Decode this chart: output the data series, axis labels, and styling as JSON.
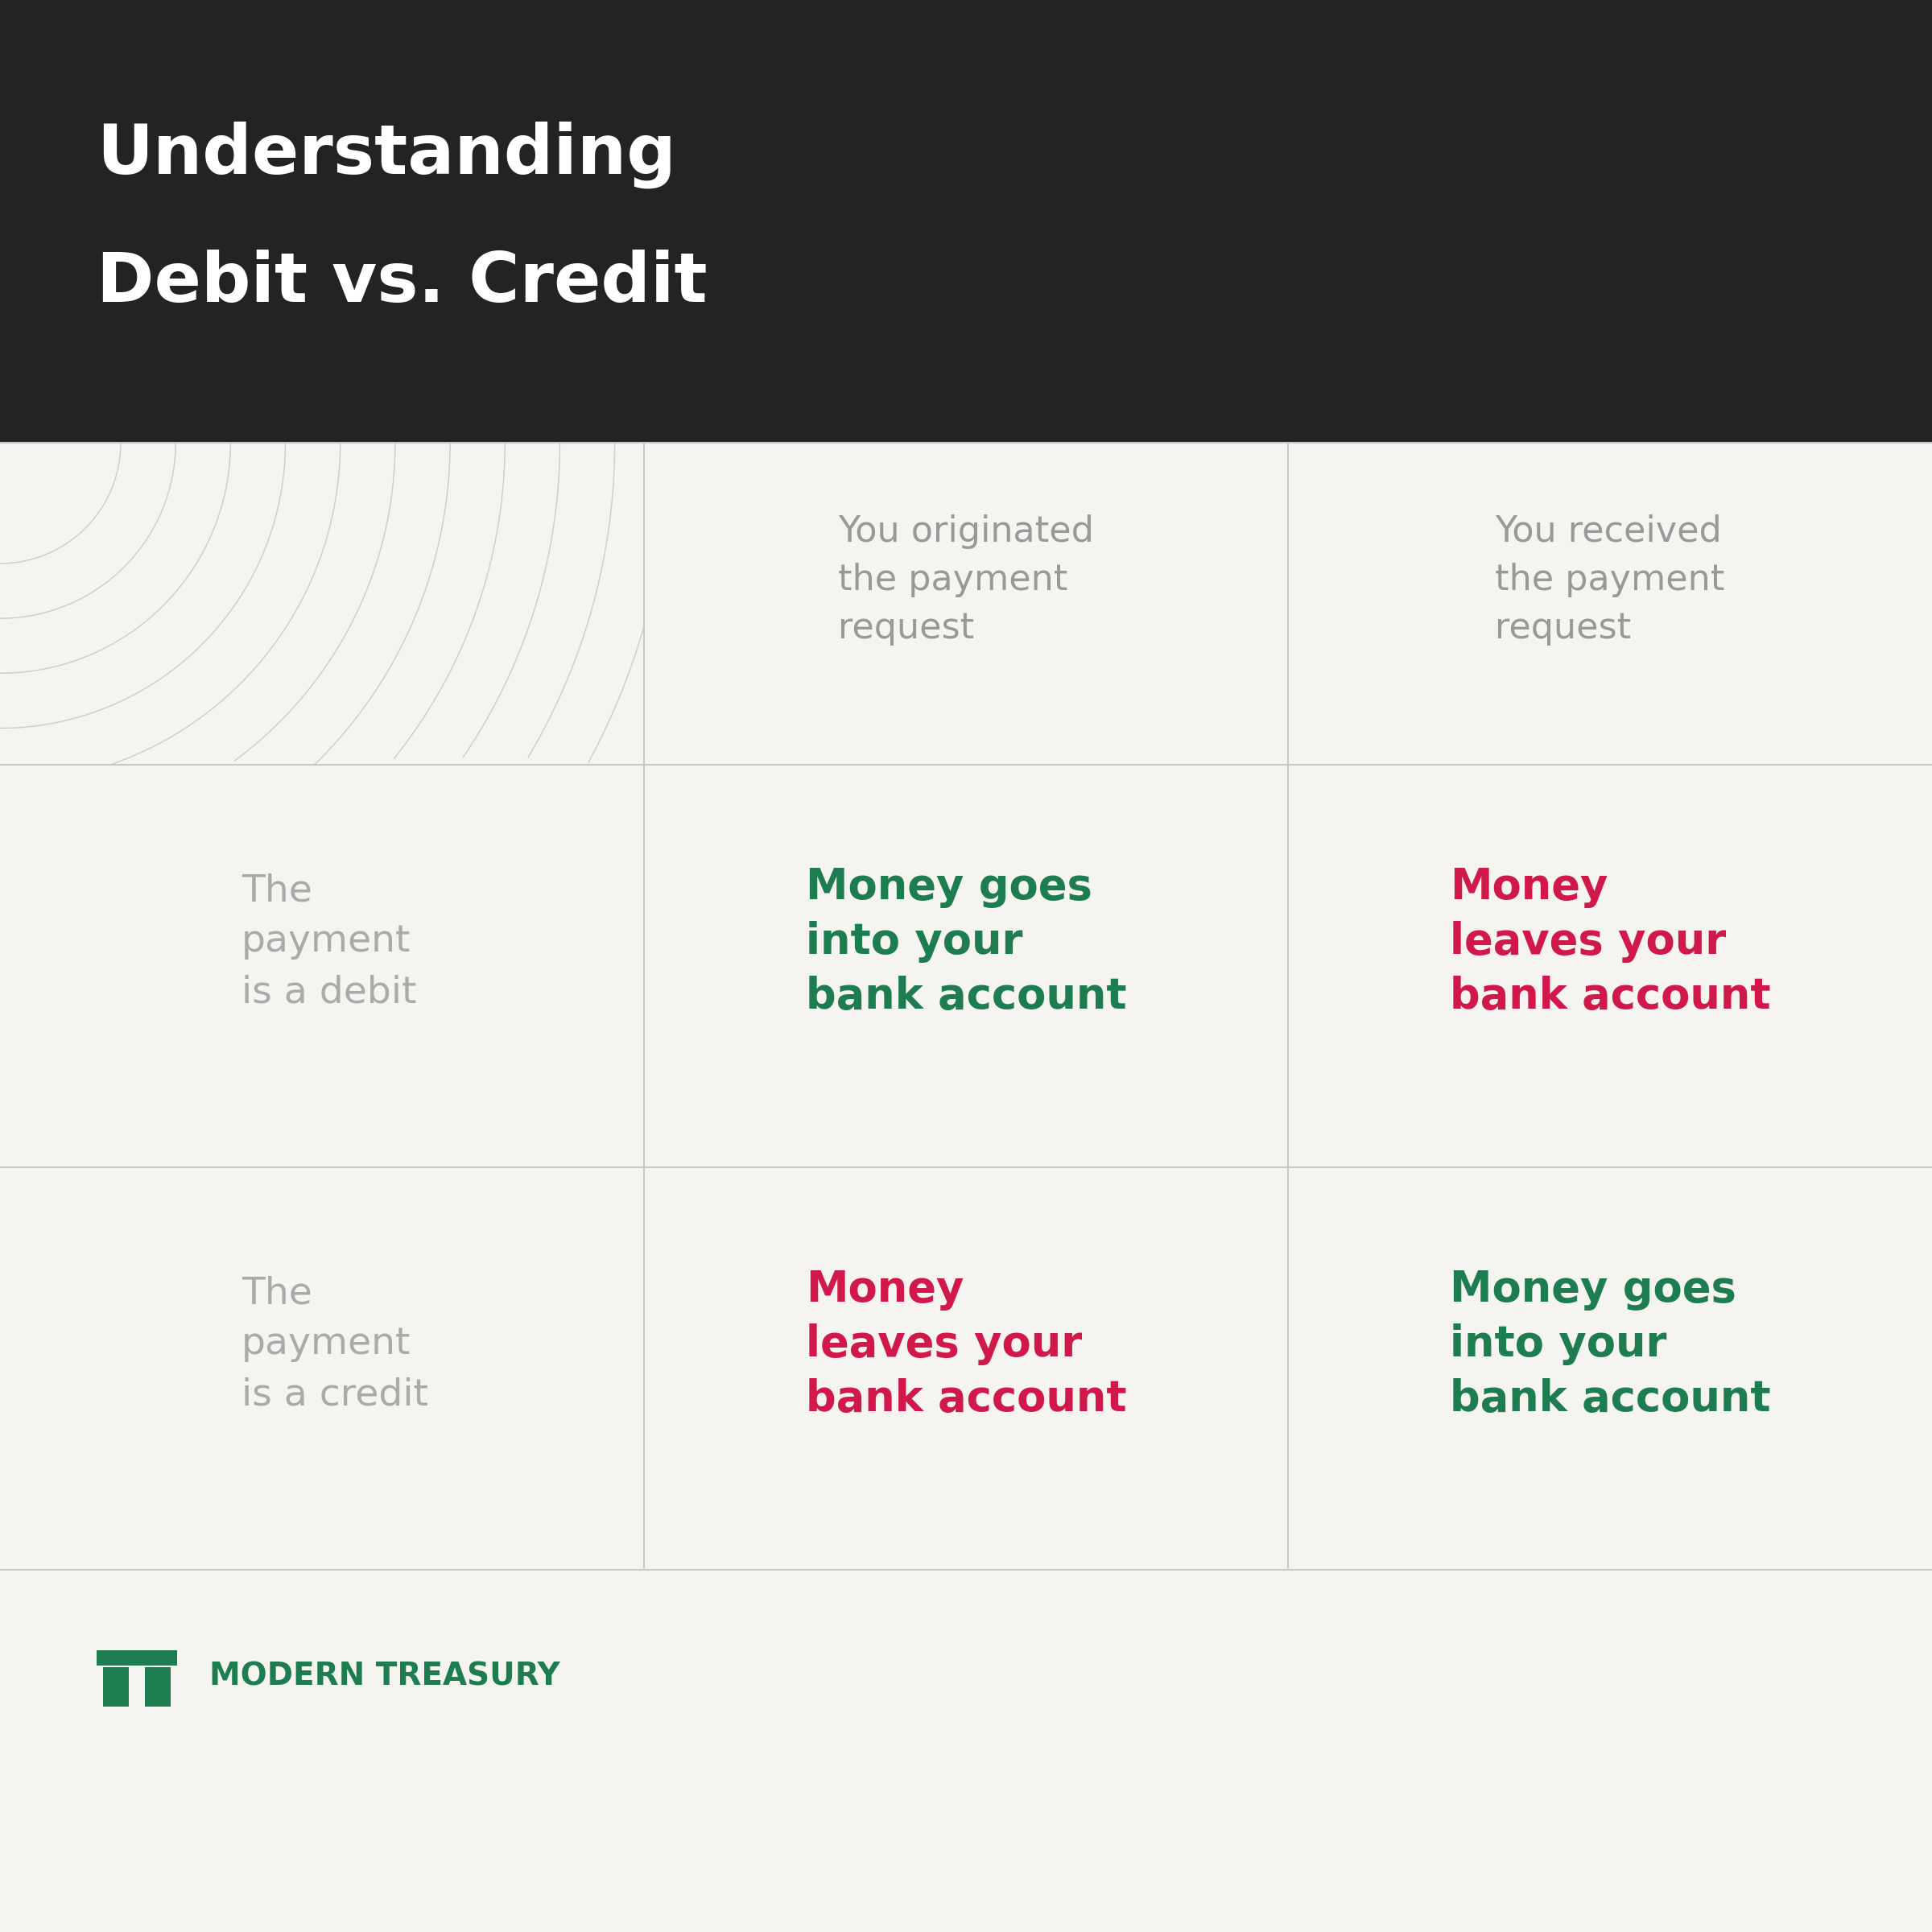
{
  "title_line1": "Understanding",
  "title_line2": "Debit vs. Credit",
  "title_bg_color": "#232323",
  "title_text_color": "#ffffff",
  "body_bg_color": "#f5f4f0",
  "grid_line_color": "#c8c8c8",
  "header_text_color": "#999999",
  "row_label_color": "#aaaaaa",
  "green_color": "#1e7d50",
  "red_color": "#d0194a",
  "logo_color": "#1e7d50",
  "col1_header": "You originated\nthe payment\nrequest",
  "col2_header": "You received\nthe payment\nrequest",
  "row1_label": "The\npayment\nis a debit",
  "row2_label": "The\npayment\nis a credit",
  "cell_r1c1_text": "Money goes\ninto your\nbank account",
  "cell_r1c1_color": "#1e7d50",
  "cell_r1c2_text": "Money\nleaves your\nbank account",
  "cell_r1c2_color": "#d0194a",
  "cell_r2c1_text": "Money\nleaves your\nbank account",
  "cell_r2c1_color": "#d0194a",
  "cell_r2c2_text": "Money goes\ninto your\nbank account",
  "cell_r2c2_color": "#1e7d50",
  "brand_name": "MODERN TREASURY",
  "brand_color": "#1e7d50",
  "arc_color": "#cccccc"
}
